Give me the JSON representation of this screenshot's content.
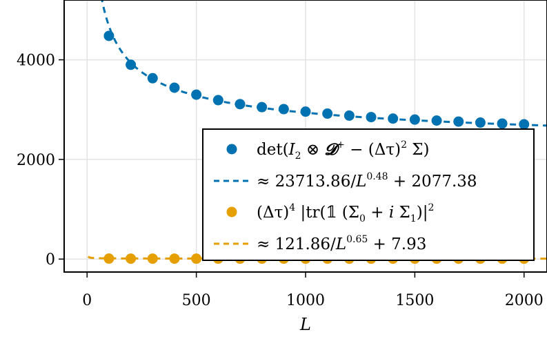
{
  "chart_data": {
    "type": "scatter",
    "xlabel": "L",
    "ylabel": "",
    "xlim": [
      -105,
      2105
    ],
    "ylim": [
      -260,
      5200
    ],
    "grid": true,
    "legend_position": "bottom-right",
    "x_ticks": [
      {
        "value": 0,
        "label": "0"
      },
      {
        "value": 500,
        "label": "500"
      },
      {
        "value": 1000,
        "label": "1000"
      },
      {
        "value": 1500,
        "label": "1500"
      },
      {
        "value": 2000,
        "label": "2000"
      }
    ],
    "y_ticks": [
      {
        "value": 0,
        "label": "0"
      },
      {
        "value": 2000,
        "label": "2000"
      },
      {
        "value": 4000,
        "label": "4000"
      }
    ],
    "series": [
      {
        "name": "det(I2 ⊗ 𝓓+ − (Δτ)2 Σ)",
        "kind": "points",
        "color": "#0072b2",
        "x": [
          100,
          200,
          300,
          400,
          500,
          600,
          700,
          800,
          900,
          1000,
          1100,
          1200,
          1300,
          1400,
          1500,
          1600,
          1700,
          1800,
          1900,
          2000
        ],
        "y": [
          4480,
          3900,
          3630,
          3440,
          3300,
          3190,
          3110,
          3050,
          3010,
          2960,
          2920,
          2880,
          2850,
          2820,
          2800,
          2780,
          2760,
          2740,
          2720,
          2705
        ]
      },
      {
        "name": "≈ 23713.86/L0.48 + 2077.38",
        "kind": "fit",
        "color": "#0072b2",
        "a": 23713.86,
        "p": 0.48,
        "c": 2077.38
      },
      {
        "name": "(Δτ)4 |tr(𝟙 (Σ0 + i Σ1)|2",
        "kind": "points",
        "color": "#e69f00",
        "x": [
          100,
          200,
          300,
          400,
          500,
          600,
          700,
          800,
          900,
          1000,
          1100,
          1200,
          1300,
          1400,
          1500,
          1600,
          1700,
          1800,
          1900,
          2000
        ],
        "y": [
          10,
          9,
          9,
          9,
          8,
          8,
          8,
          8,
          8,
          8,
          8,
          8,
          8,
          8,
          8,
          8,
          8,
          8,
          8,
          8
        ]
      },
      {
        "name": "≈ 121.86/L0.65 + 7.93",
        "kind": "fit",
        "color": "#e69f00",
        "a": 121.86,
        "p": 0.65,
        "c": 7.93
      }
    ],
    "legend": {
      "det": "det(",
      "I": "I",
      "two": "2",
      "otimes": " ⊗ ",
      "D": "𝓓",
      "plus_sup": "+",
      "minus_dtau": " − (Δτ)",
      "sq": "2",
      "sigma": " Σ)",
      "fit1_pre": "≈ 23713.86/",
      "L": "L",
      "fit1_exp": "0.48",
      "fit1_post": " + 2077.38",
      "dtau": "(Δτ)",
      "four": "4",
      "tr": " |tr(𝟙 (Σ",
      "zero": "0",
      "plus_i": " + ",
      "i": "i",
      "sig1": " Σ",
      "one": "1",
      "close": ")|",
      "fit2_pre": "≈ 121.86/",
      "fit2_exp": "0.65",
      "fit2_post": " + 7.93"
    }
  }
}
